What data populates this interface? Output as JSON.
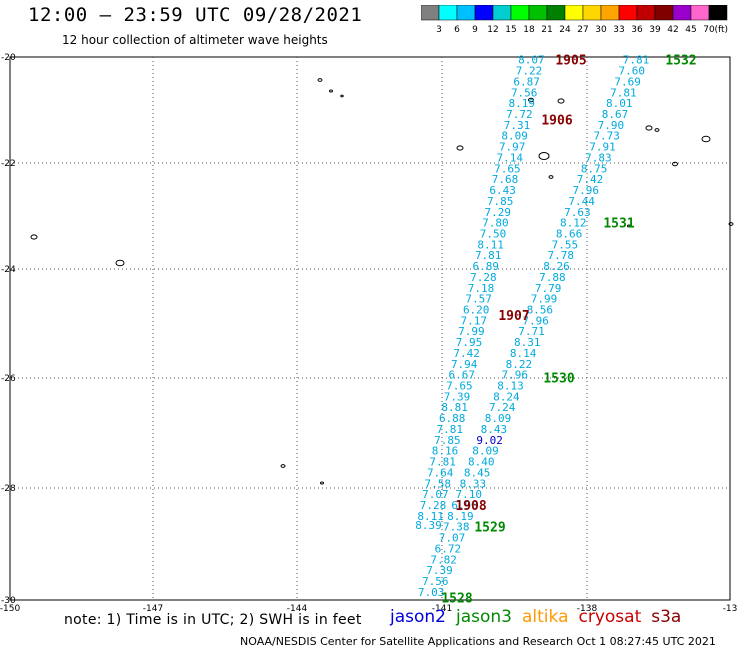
{
  "header": {
    "title": "12:00 – 23:59 UTC 09/28/2021",
    "subtitle": "12 hour collection of altimeter wave heights"
  },
  "colorbar": {
    "unit": "(ft)",
    "labels": [
      "3",
      "6",
      "9",
      "12",
      "15",
      "18",
      "21",
      "24",
      "27",
      "30",
      "33",
      "36",
      "39",
      "42",
      "45",
      "70"
    ],
    "colors": [
      "#808080",
      "#00ffff",
      "#00bfff",
      "#0000ff",
      "#00ced1",
      "#00ff00",
      "#00c000",
      "#008000",
      "#ffff00",
      "#ffd700",
      "#ffa500",
      "#ff0000",
      "#c00000",
      "#800000",
      "#9900cc",
      "#ff66cc",
      "#000000"
    ]
  },
  "footer": {
    "note": "note: 1) Time is in UTC; 2) SWH is in feet",
    "credit": "NOAA/NESDIS Center for Satellite Applications and Research    Oct  1 08:27:45 UTC 2021",
    "satellites": [
      {
        "name": "jason2",
        "color": "#0000dd"
      },
      {
        "name": "jason3",
        "color": "#008800"
      },
      {
        "name": "altika",
        "color": "#ff9900"
      },
      {
        "name": "cryosat",
        "color": "#cc0000"
      },
      {
        "name": "s3a",
        "color": "#880000"
      }
    ]
  },
  "chart_data": {
    "type": "scatter",
    "xlim": [
      -150,
      -13
    ],
    "ylim": [
      -30,
      -20
    ],
    "grid": true,
    "xticks": [
      "-150",
      "-147",
      "-144",
      "-141",
      "-138",
      "-13"
    ],
    "yticks": [
      "-20",
      "-22",
      "-24",
      "-26",
      "-28",
      "-30"
    ],
    "colors": {
      "value": "#00aadd",
      "value_high": "#0000cc",
      "time_s3a": "#880000",
      "time_jason3": "#008800"
    },
    "track_west": [
      [
        "8.07",
        -20.05
      ],
      [
        "7.22",
        -20.25
      ],
      [
        "6.87",
        -20.45
      ],
      [
        "7.56",
        -20.65
      ],
      [
        "8.19",
        -20.85
      ],
      [
        "7.72",
        -21.05
      ],
      [
        "7.31",
        -21.25
      ],
      [
        "8.09",
        -21.45
      ],
      [
        "7.97",
        -21.65
      ],
      [
        "7.14",
        -21.85
      ],
      [
        "7.65",
        -22.05
      ],
      [
        "7.68",
        -22.25
      ],
      [
        "6.43",
        -22.45
      ],
      [
        "7.85",
        -22.65
      ],
      [
        "7.29",
        -22.85
      ],
      [
        "7.80",
        -23.05
      ],
      [
        "7.50",
        -23.25
      ],
      [
        "8.11",
        -23.45
      ],
      [
        "7.81",
        -23.65
      ],
      [
        "6.89",
        -23.85
      ],
      [
        "7.28",
        -24.05
      ],
      [
        "7.18",
        -24.25
      ],
      [
        "7.57",
        -24.45
      ],
      [
        "6.20",
        -24.65
      ],
      [
        "7.17",
        -24.85
      ],
      [
        "7.99",
        -25.05
      ],
      [
        "7.95",
        -25.25
      ],
      [
        "7.42",
        -25.45
      ],
      [
        "7.94",
        -25.65
      ],
      [
        "6.67",
        -25.85
      ],
      [
        "7.65",
        -26.05
      ],
      [
        "7.39",
        -26.25
      ],
      [
        "8.81",
        -26.45
      ],
      [
        "6.88",
        -26.65
      ],
      [
        "7.81",
        -26.85
      ],
      [
        "7.85",
        -27.05
      ],
      [
        "8.16",
        -27.25
      ],
      [
        "7.81",
        -27.45
      ],
      [
        "7.64",
        -27.65
      ],
      [
        "7.58",
        -27.85
      ],
      [
        "7.07",
        -28.05
      ],
      [
        "7.28",
        -28.25
      ],
      [
        "8.11",
        -28.45
      ],
      [
        "8.39",
        -28.62
      ]
    ],
    "track_east": [
      [
        "7.81",
        -20.05
      ],
      [
        "7.60",
        -20.25
      ],
      [
        "7.69",
        -20.45
      ],
      [
        "7.81",
        -20.65
      ],
      [
        "8.01",
        -20.85
      ],
      [
        "8.67",
        -21.05
      ],
      [
        "7.90",
        -21.25
      ],
      [
        "7.73",
        -21.45
      ],
      [
        "7.91",
        -21.65
      ],
      [
        "7.83",
        -21.85
      ],
      [
        "8.75",
        -22.05
      ],
      [
        "7.42",
        -22.25
      ],
      [
        "7.96",
        -22.45
      ],
      [
        "7.44",
        -22.65
      ],
      [
        "7.63",
        -22.85
      ],
      [
        "8.12",
        -23.05
      ],
      [
        "8.66",
        -23.25
      ],
      [
        "7.55",
        -23.45
      ],
      [
        "7.78",
        -23.65
      ],
      [
        "8.26",
        -23.85
      ],
      [
        "7.88",
        -24.05
      ],
      [
        "7.79",
        -24.25
      ],
      [
        "7.99",
        -24.45
      ],
      [
        "8.56",
        -24.65
      ],
      [
        "7.96",
        -24.85
      ],
      [
        "7.71",
        -25.05
      ],
      [
        "8.31",
        -25.25
      ],
      [
        "8.14",
        -25.45
      ],
      [
        "8.22",
        -25.65
      ],
      [
        "7.96",
        -25.85
      ],
      [
        "8.13",
        -26.05
      ],
      [
        "8.24",
        -26.25
      ],
      [
        "7.24",
        -26.45
      ],
      [
        "8.09",
        -26.65
      ],
      [
        "8.43",
        -26.85
      ],
      [
        "9.02",
        -27.05
      ],
      [
        "8.09",
        -27.25
      ],
      [
        "8.40",
        -27.45
      ],
      [
        "8.45",
        -27.65
      ],
      [
        "8.33",
        -27.85
      ],
      [
        "7.10",
        -28.05
      ],
      [
        "6.96",
        -28.25
      ],
      [
        "8.19",
        -28.45
      ],
      [
        "7.38",
        -28.65
      ],
      [
        "7.07",
        -28.85
      ],
      [
        "6.72",
        -29.05
      ],
      [
        "7.82",
        -29.25
      ],
      [
        "7.39",
        -29.45
      ],
      [
        "7.56",
        -29.65
      ],
      [
        "7.03",
        -29.85
      ]
    ],
    "times": [
      {
        "label": "1905",
        "y": -20.05,
        "sat": "s3a"
      },
      {
        "label": "1906",
        "y": -21.15,
        "sat": "s3a"
      },
      {
        "label": "1907",
        "y": -24.75,
        "sat": "s3a"
      },
      {
        "label": "1908",
        "y": -28.25,
        "sat": "s3a"
      },
      {
        "label": "1532",
        "y": -20.05,
        "sat": "jason3"
      },
      {
        "label": "1531",
        "y": -23.05,
        "sat": "jason3"
      },
      {
        "label": "1530",
        "y": -25.9,
        "sat": "jason3"
      },
      {
        "label": "1529",
        "y": -28.65,
        "sat": "jason3"
      },
      {
        "label": "1528",
        "y": -29.95,
        "sat": "jason3"
      }
    ]
  }
}
